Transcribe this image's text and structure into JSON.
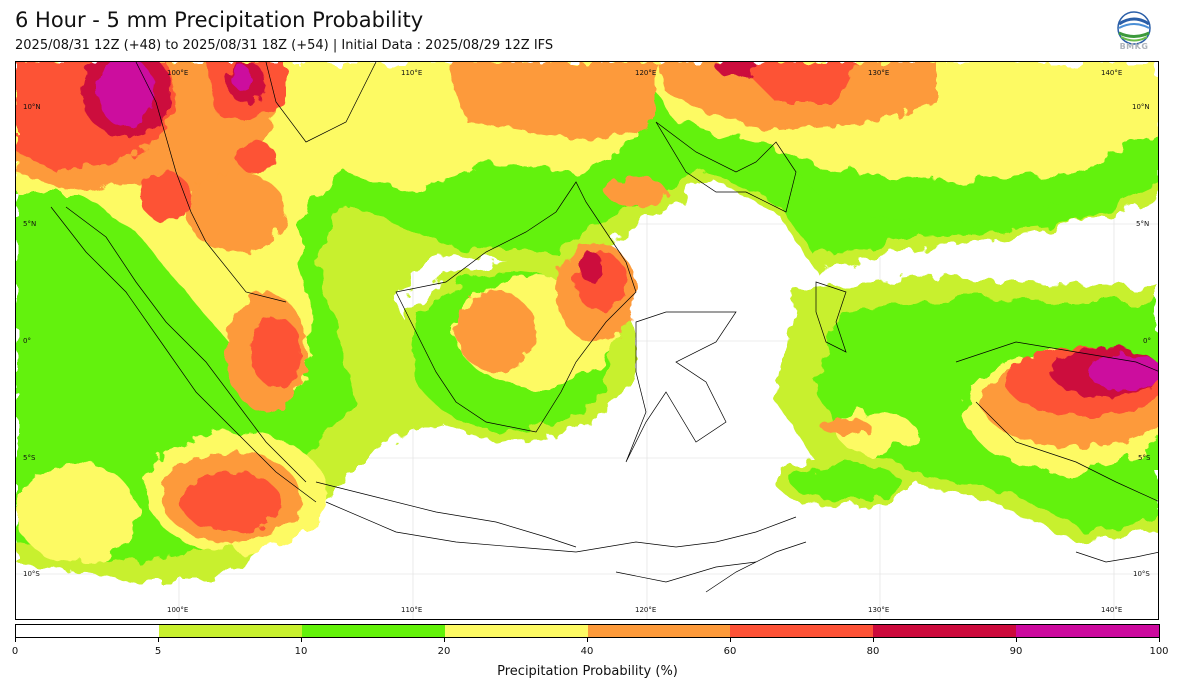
{
  "title": "6 Hour - 5 mm Precipitation Probability",
  "subtitle": "2025/08/31 12Z (+48) to 2025/08/31 18Z (+54) | Initial Data : 2025/08/29 12Z IFS",
  "logo_text": "BMKG",
  "map": {
    "lon_labels": [
      "100°E",
      "110°E",
      "120°E",
      "130°E",
      "140°E"
    ],
    "lat_labels_left": [
      "10°N",
      "5°N",
      "0°",
      "5°S",
      "10°S"
    ],
    "lat_labels_right": [
      "10°N",
      "5°N",
      "0°",
      "5°S",
      "10°S"
    ]
  },
  "colorbar": {
    "label": "Precipitation Probability (%)",
    "ticks": [
      "0",
      "5",
      "10",
      "20",
      "40",
      "60",
      "80",
      "90",
      "100"
    ],
    "colors": [
      "#ffffff",
      "#c8f02e",
      "#63f20a",
      "#fdfa64",
      "#fd9a3a",
      "#fd5236",
      "#cc0a3c",
      "#cc0a9e"
    ]
  }
}
